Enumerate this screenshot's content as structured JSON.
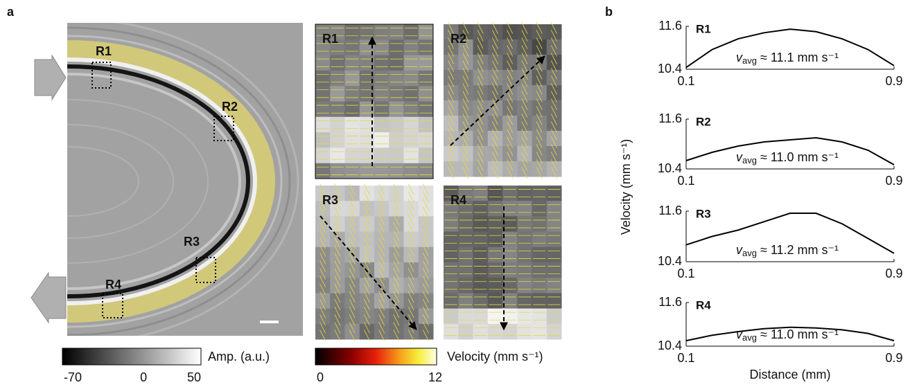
{
  "panel_a": {
    "label": "a",
    "regions": [
      "R1",
      "R2",
      "R3",
      "R4"
    ],
    "amplitude_colorbar": {
      "label": "Amp. (a.u.)",
      "lim": [
        -70,
        50
      ],
      "ticks": [
        -70,
        0,
        50
      ]
    },
    "velocity_colorbar": {
      "label": "Velocity (mm s⁻¹)",
      "lim": [
        0,
        12
      ],
      "ticks": [
        0,
        12
      ]
    }
  },
  "panel_b": {
    "label": "b",
    "ylabel": "Velocity (mm s⁻¹)"
  },
  "chart_data": [
    {
      "type": "line",
      "title": "R1",
      "annotation": {
        "symbol": "v",
        "subscript": "avg",
        "text": "≈ 11.1 mm s⁻¹"
      },
      "x": [
        0.1,
        0.2,
        0.3,
        0.4,
        0.5,
        0.6,
        0.7,
        0.8,
        0.9
      ],
      "values": [
        10.45,
        10.95,
        11.25,
        11.42,
        11.52,
        11.45,
        11.25,
        10.95,
        10.5
      ],
      "xlim": [
        0.1,
        0.9
      ],
      "ylim": [
        10.4,
        11.6
      ],
      "xticks": [
        0.1,
        0.9
      ],
      "yticks": [
        10.4,
        11.6
      ],
      "color": "#000000"
    },
    {
      "type": "line",
      "title": "R2",
      "annotation": {
        "symbol": "v",
        "subscript": "avg",
        "text": "≈ 11.0 mm s⁻¹"
      },
      "x": [
        0.1,
        0.2,
        0.3,
        0.4,
        0.5,
        0.6,
        0.7,
        0.8,
        0.9
      ],
      "values": [
        10.6,
        10.8,
        10.95,
        11.05,
        11.1,
        11.15,
        11.05,
        10.85,
        10.5
      ],
      "xlim": [
        0.1,
        0.9
      ],
      "ylim": [
        10.4,
        11.6
      ],
      "xticks": [
        0.1,
        0.9
      ],
      "yticks": [
        10.4,
        11.6
      ],
      "color": "#000000"
    },
    {
      "type": "line",
      "title": "R3",
      "annotation": {
        "symbol": "v",
        "subscript": "avg",
        "text": "≈ 11.2 mm s⁻¹"
      },
      "x": [
        0.1,
        0.2,
        0.3,
        0.4,
        0.5,
        0.6,
        0.7,
        0.8,
        0.9
      ],
      "values": [
        10.8,
        11.0,
        11.15,
        11.35,
        11.55,
        11.55,
        11.3,
        10.95,
        10.6
      ],
      "xlim": [
        0.1,
        0.9
      ],
      "ylim": [
        10.4,
        11.6
      ],
      "xticks": [
        0.1,
        0.9
      ],
      "yticks": [
        10.4,
        11.6
      ],
      "color": "#000000"
    },
    {
      "type": "line",
      "title": "R4",
      "annotation": {
        "symbol": "v",
        "subscript": "avg",
        "text": "≈ 11.0 mm s⁻¹"
      },
      "x": [
        0.1,
        0.2,
        0.3,
        0.4,
        0.5,
        0.6,
        0.7,
        0.8,
        0.9
      ],
      "values": [
        10.55,
        10.7,
        10.8,
        10.88,
        10.92,
        10.9,
        10.85,
        10.75,
        10.55
      ],
      "xlim": [
        0.1,
        0.9
      ],
      "ylim": [
        10.4,
        11.6
      ],
      "xticks": [
        0.1,
        0.9
      ],
      "yticks": [
        10.4,
        11.6
      ],
      "color": "#000000",
      "xlabel": "Distance (mm)"
    }
  ]
}
